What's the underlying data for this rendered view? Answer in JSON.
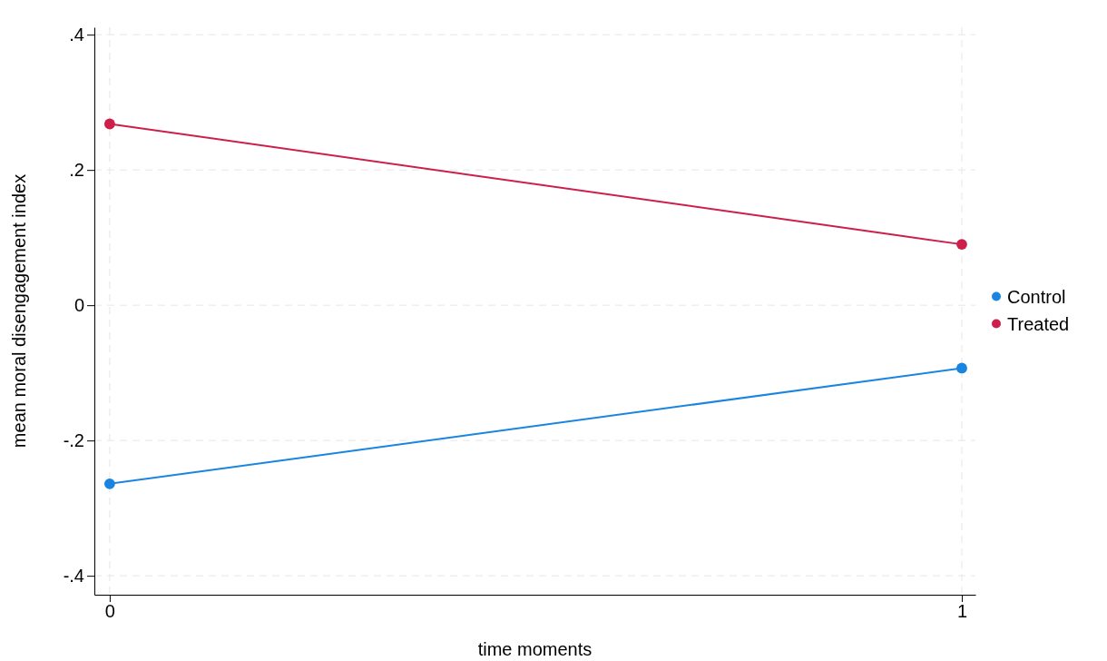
{
  "chart_data": {
    "type": "line",
    "xlabel": "time moments",
    "ylabel": "mean moral disengagement index",
    "x": [
      0,
      1
    ],
    "series": [
      {
        "name": "Control",
        "color": "#1a85e0",
        "values": [
          -0.264,
          -0.093
        ]
      },
      {
        "name": "Treated",
        "color": "#cc1f4a",
        "values": [
          0.268,
          0.09
        ]
      }
    ],
    "xlim": [
      -0.018,
      1.016
    ],
    "xticks": [
      0,
      1
    ],
    "ylim": [
      -0.428,
      0.411
    ],
    "yticks": [
      {
        "value": -0.4,
        "label": "-.4"
      },
      {
        "value": -0.2,
        "label": "-.2"
      },
      0,
      {
        "value": 0.2,
        "label": ".2"
      },
      {
        "value": 0.4,
        "label": ".4"
      }
    ],
    "grid": true,
    "legend": "right",
    "marker": "circle",
    "line_style": "solid"
  }
}
